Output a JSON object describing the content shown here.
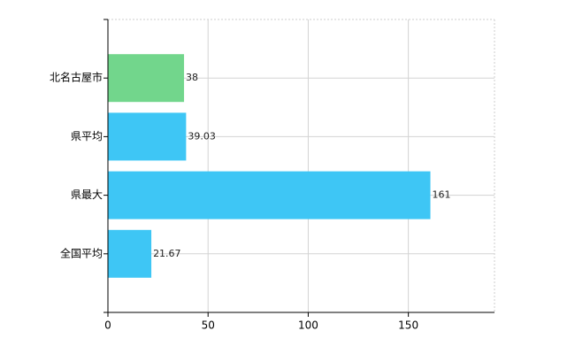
{
  "chart_data": {
    "type": "barh",
    "categories": [
      "北名古屋市",
      "県平均",
      "県最大",
      "全国平均"
    ],
    "values": [
      38,
      39.03,
      161,
      21.67
    ],
    "colors": [
      "#72d68c",
      "#3ec6f5",
      "#3ec6f5",
      "#3ec6f5"
    ],
    "xlim": [
      0,
      193
    ],
    "xticks": [
      0,
      50,
      100,
      150
    ],
    "grid": true
  }
}
